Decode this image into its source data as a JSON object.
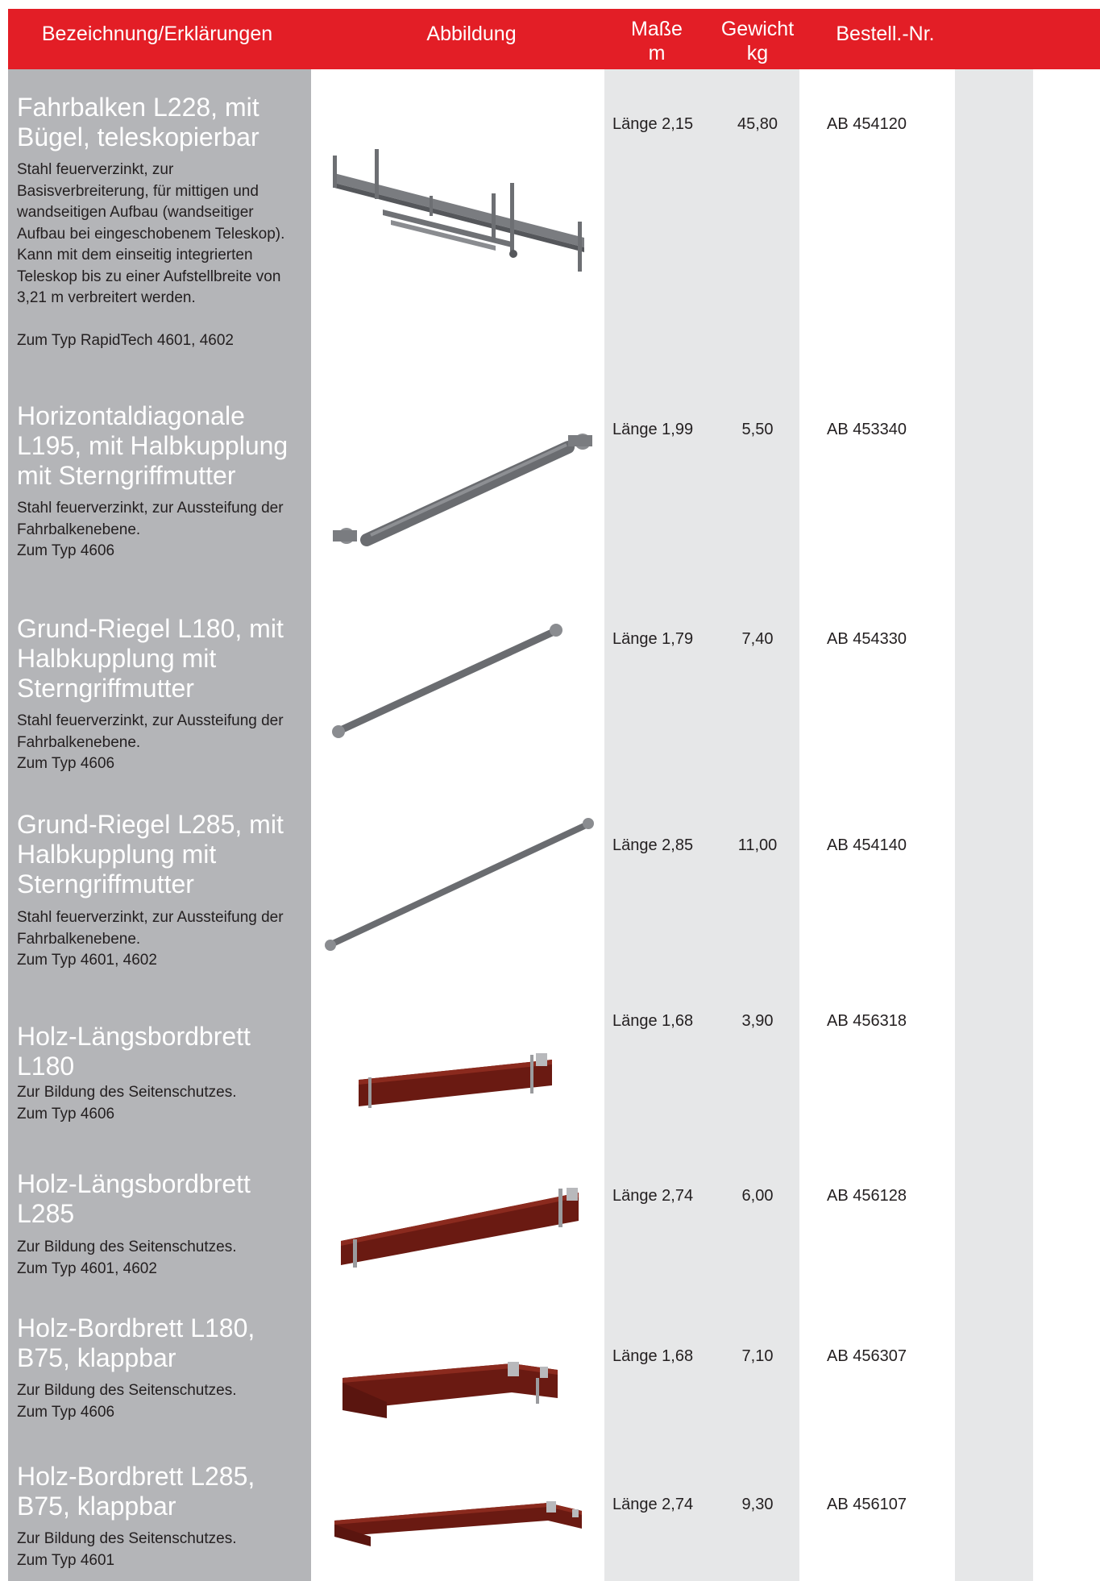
{
  "header": {
    "col_name": "Bezeichnung/Erklärungen",
    "col_image": "Abbildung",
    "col_dims_line1": "Maße",
    "col_dims_line2": "m",
    "col_weight_line1": "Gewicht",
    "col_weight_line2": "kg",
    "col_order": "Bestell.-Nr."
  },
  "colors": {
    "header_red": "#e31e26",
    "left_column_gray": "#b4b5b8",
    "light_stripe": "#e6e7e8",
    "steel": "#6d6f73",
    "wood": "#6a1a12"
  },
  "rows": [
    {
      "title": "Fahrbalken L228, mit Bügel, teleskopierbar",
      "description": "Stahl feuerverzinkt, zur Basisverbreiterung, für mittigen und wandseitigen Aufbau (wandseitiger Aufbau bei eingeschobenem Teleskop). Kann mit dem einseitig integrierten Teleskop bis zu einer Aufstellbreite von 3,21 m verbreitert werden.",
      "type_note": "Zum Typ RapidTech 4601, 4602",
      "length": "Länge 2,15",
      "weight": "45,80",
      "order_no": "AB 454120",
      "icon": "telescopic-beam-image"
    },
    {
      "title": "Horizontaldiagonale L195, mit Halbkupplung mit Sterngriffmutter",
      "description": "Stahl feuerverzinkt, zur Aussteifung der Fahrbalkenebene.",
      "type_note": "Zum Typ 4606",
      "length": "Länge 1,99",
      "weight": "5,50",
      "order_no": "AB 453340",
      "icon": "diagonal-tube-image"
    },
    {
      "title": "Grund-Riegel L180, mit Halbkupplung mit Sterngriffmutter",
      "description": "Stahl feuerverzinkt, zur Aussteifung der Fahrbalkenebene.",
      "type_note": "Zum Typ 4606",
      "length": "Länge 1,79",
      "weight": "7,40",
      "order_no": "AB 454330",
      "icon": "base-ledger-image"
    },
    {
      "title": "Grund-Riegel L285, mit Halbkupplung mit Sterngriffmutter",
      "description": "Stahl feuerverzinkt, zur Aussteifung der Fahrbalkenebene.",
      "type_note": "Zum Typ 4601, 4602",
      "length": "Länge 2,85",
      "weight": "11,00",
      "order_no": "AB 454140",
      "icon": "base-ledger-image"
    },
    {
      "title": "Holz-Längsbordbrett L180",
      "description": "Zur Bildung des Seitenschutzes.",
      "type_note": "Zum Typ 4606",
      "length": "Länge 1,68",
      "weight": "3,90",
      "order_no": "AB 456318",
      "icon": "toe-board-image"
    },
    {
      "title": "Holz-Längsbordbrett L285",
      "description": "Zur Bildung des Seitenschutzes.",
      "type_note": "Zum Typ 4601, 4602",
      "length": "Länge 2,74",
      "weight": "6,00",
      "order_no": "AB 456128",
      "icon": "toe-board-image"
    },
    {
      "title": "Holz-Bordbrett L180, B75, klappbar",
      "description": "Zur Bildung des Seitenschutzes.",
      "type_note": "Zum Typ 4606",
      "length": "Länge 1,68",
      "weight": "7,10",
      "order_no": "AB 456307",
      "icon": "folding-board-image"
    },
    {
      "title": "Holz-Bordbrett L285, B75, klappbar",
      "description": "Zur Bildung des Seitenschutzes.",
      "type_note": "Zum Typ 4601",
      "length": "Länge 2,74",
      "weight": "9,30",
      "order_no": "AB 456107",
      "icon": "folding-board-image"
    }
  ]
}
